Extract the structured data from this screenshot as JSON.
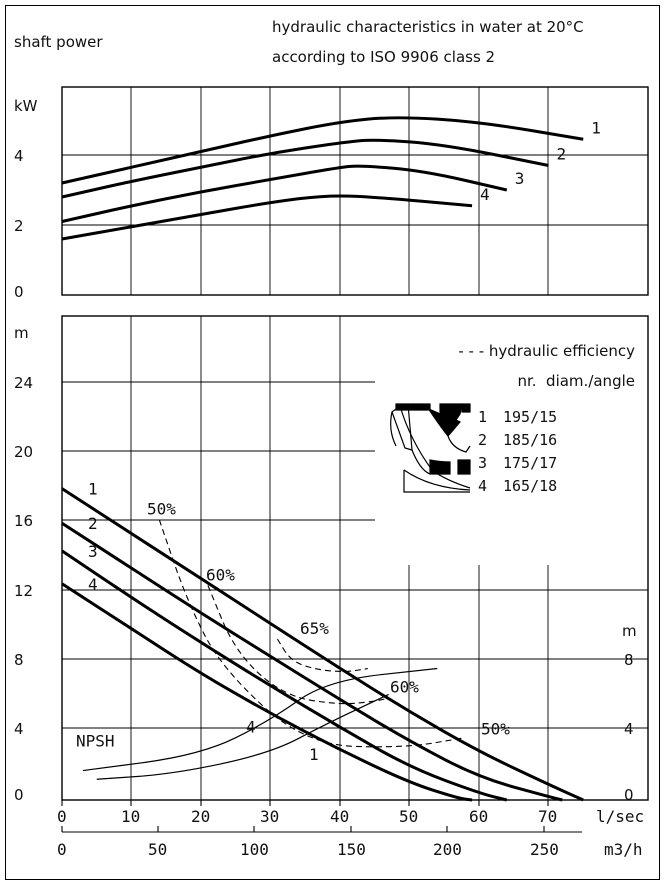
{
  "header": {
    "left_title": "shaft power",
    "right_line1": "hydraulic characteristics in water at 20°C",
    "right_line2": "according to ISO 9906 class 2"
  },
  "legend": {
    "efficiency_note": "- - - hydraulic efficiency",
    "table_header": "nr.  diam./angle",
    "rows": [
      {
        "nr": "1",
        "value": "195/15"
      },
      {
        "nr": "2",
        "value": "185/16"
      },
      {
        "nr": "3",
        "value": "175/17"
      },
      {
        "nr": "4",
        "value": "165/18"
      }
    ]
  },
  "chart_data": [
    {
      "type": "line",
      "title": "shaft power",
      "ylabel": "kW",
      "xlabel": "l/sec",
      "xlim": [
        0,
        75
      ],
      "ylim": [
        0,
        6
      ],
      "y_ticks": [
        "0",
        "2",
        "4"
      ],
      "grid": true,
      "series": [
        {
          "name": "1",
          "x": [
            0,
            10,
            20,
            30,
            40,
            48,
            60,
            75
          ],
          "y": [
            3.2,
            3.65,
            4.1,
            4.55,
            4.95,
            5.1,
            4.95,
            4.45
          ]
        },
        {
          "name": "2",
          "x": [
            0,
            10,
            20,
            30,
            40,
            45,
            55,
            70
          ],
          "y": [
            2.8,
            3.25,
            3.65,
            4.05,
            4.35,
            4.45,
            4.3,
            3.7
          ]
        },
        {
          "name": "3",
          "x": [
            0,
            10,
            20,
            30,
            40,
            43,
            52,
            64
          ],
          "y": [
            2.1,
            2.55,
            2.95,
            3.3,
            3.65,
            3.7,
            3.55,
            3.0
          ]
        },
        {
          "name": "4",
          "x": [
            0,
            10,
            20,
            30,
            38,
            45,
            59
          ],
          "y": [
            1.6,
            1.95,
            2.3,
            2.65,
            2.85,
            2.8,
            2.55
          ]
        }
      ]
    },
    {
      "type": "line",
      "ylabel": "m",
      "xlabel": "l/sec",
      "x2label": "m3/h",
      "xlim": [
        0,
        75
      ],
      "ylim": [
        0,
        28
      ],
      "x_ticks": [
        "0",
        "10",
        "20",
        "30",
        "40",
        "50",
        "60",
        "70"
      ],
      "x2_ticks": [
        "0",
        "50",
        "100",
        "150",
        "200",
        "250"
      ],
      "y_ticks": [
        "0",
        "4",
        "8",
        "12",
        "16",
        "20",
        "24"
      ],
      "y2label": "m",
      "y2_ticks": [
        "0",
        "4",
        "8"
      ],
      "grid": true,
      "series": [
        {
          "name": "1",
          "x": [
            0,
            10,
            20,
            30,
            40,
            50,
            60,
            70,
            75
          ],
          "y": [
            18,
            15.4,
            12.8,
            10.2,
            7.6,
            5.1,
            2.8,
            0.9,
            0
          ]
        },
        {
          "name": "2",
          "x": [
            0,
            10,
            20,
            30,
            40,
            50,
            60,
            70,
            72
          ],
          "y": [
            16,
            13.4,
            10.8,
            8.3,
            5.8,
            3.4,
            1.3,
            0.2,
            0
          ]
        },
        {
          "name": "3",
          "x": [
            0,
            10,
            20,
            30,
            40,
            50,
            60,
            64
          ],
          "y": [
            14.4,
            11.7,
            9.1,
            6.6,
            4.2,
            1.9,
            0.4,
            0
          ]
        },
        {
          "name": "4",
          "x": [
            0,
            10,
            20,
            30,
            40,
            50,
            57,
            59
          ],
          "y": [
            12.5,
            9.9,
            7.3,
            5,
            2.9,
            1,
            0.1,
            0
          ]
        }
      ],
      "npsh": {
        "label": "NPSH",
        "series": [
          {
            "name": "1",
            "x": [
              5,
              16,
              30,
              38,
              47
            ],
            "y": [
              1.2,
              1.5,
              2.7,
              4.4,
              6.1
            ]
          },
          {
            "name": "4",
            "x": [
              3,
              20,
              30,
              38,
              54
            ],
            "y": [
              1.7,
              2.6,
              4.6,
              6.9,
              7.6
            ]
          }
        ]
      },
      "efficiency": [
        {
          "label": "50%",
          "x": [
            14,
            18,
            23,
            35,
            49,
            58
          ],
          "y": [
            16.2,
            11.5,
            7.6,
            3.2,
            3.0,
            3.6
          ]
        },
        {
          "label": "60%",
          "x": [
            21,
            25,
            32,
            40,
            45,
            47
          ],
          "y": [
            12.4,
            8.5,
            6.0,
            5.5,
            5.7,
            5.9
          ]
        },
        {
          "label": "65%",
          "x": [
            31,
            33,
            37,
            41,
            44
          ],
          "y": [
            9.3,
            8.0,
            7.5,
            7.4,
            7.6
          ]
        }
      ]
    }
  ]
}
